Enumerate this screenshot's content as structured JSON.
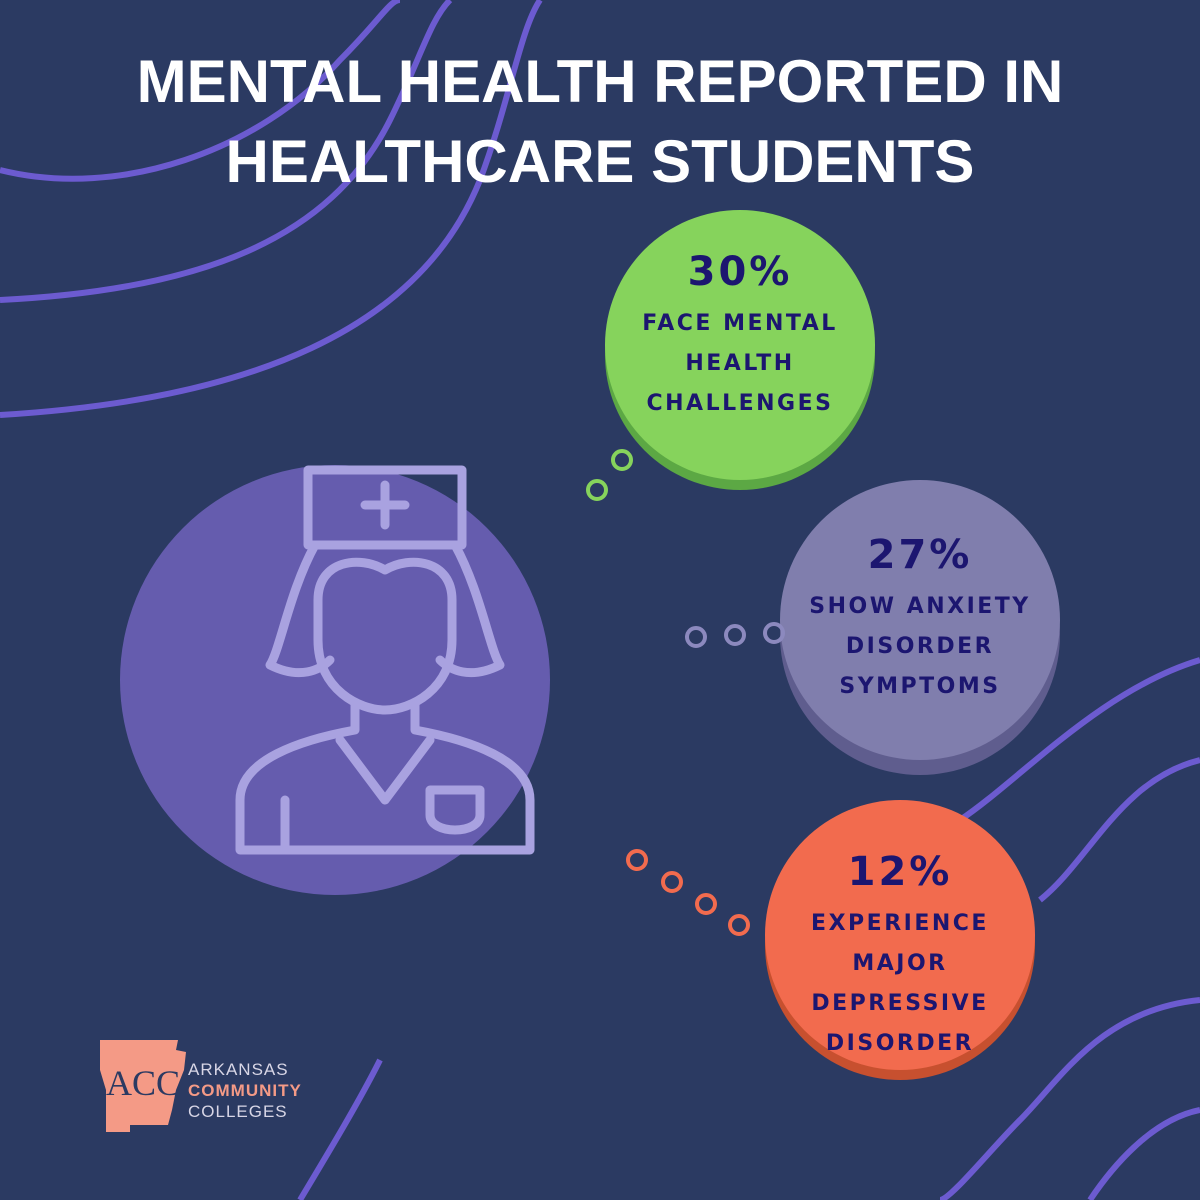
{
  "title": {
    "lines": [
      "MENTAL HEALTH REPORTED IN",
      "HEALTHCARE STUDENTS"
    ]
  },
  "stats": [
    {
      "value": "30%",
      "lines": [
        "FACE MENTAL",
        "HEALTH",
        "CHALLENGES"
      ]
    },
    {
      "value": "27%",
      "lines": [
        "SHOW ANXIETY",
        "DISORDER",
        "SYMPTOMS"
      ]
    },
    {
      "value": "12%",
      "lines": [
        "EXPERIENCE",
        "MAJOR",
        "DEPRESSIVE",
        "DISORDER"
      ]
    }
  ],
  "logo": {
    "mark": "ACC",
    "lines": [
      "ARKANSAS",
      "COMMUNITY",
      "COLLEGES"
    ]
  }
}
